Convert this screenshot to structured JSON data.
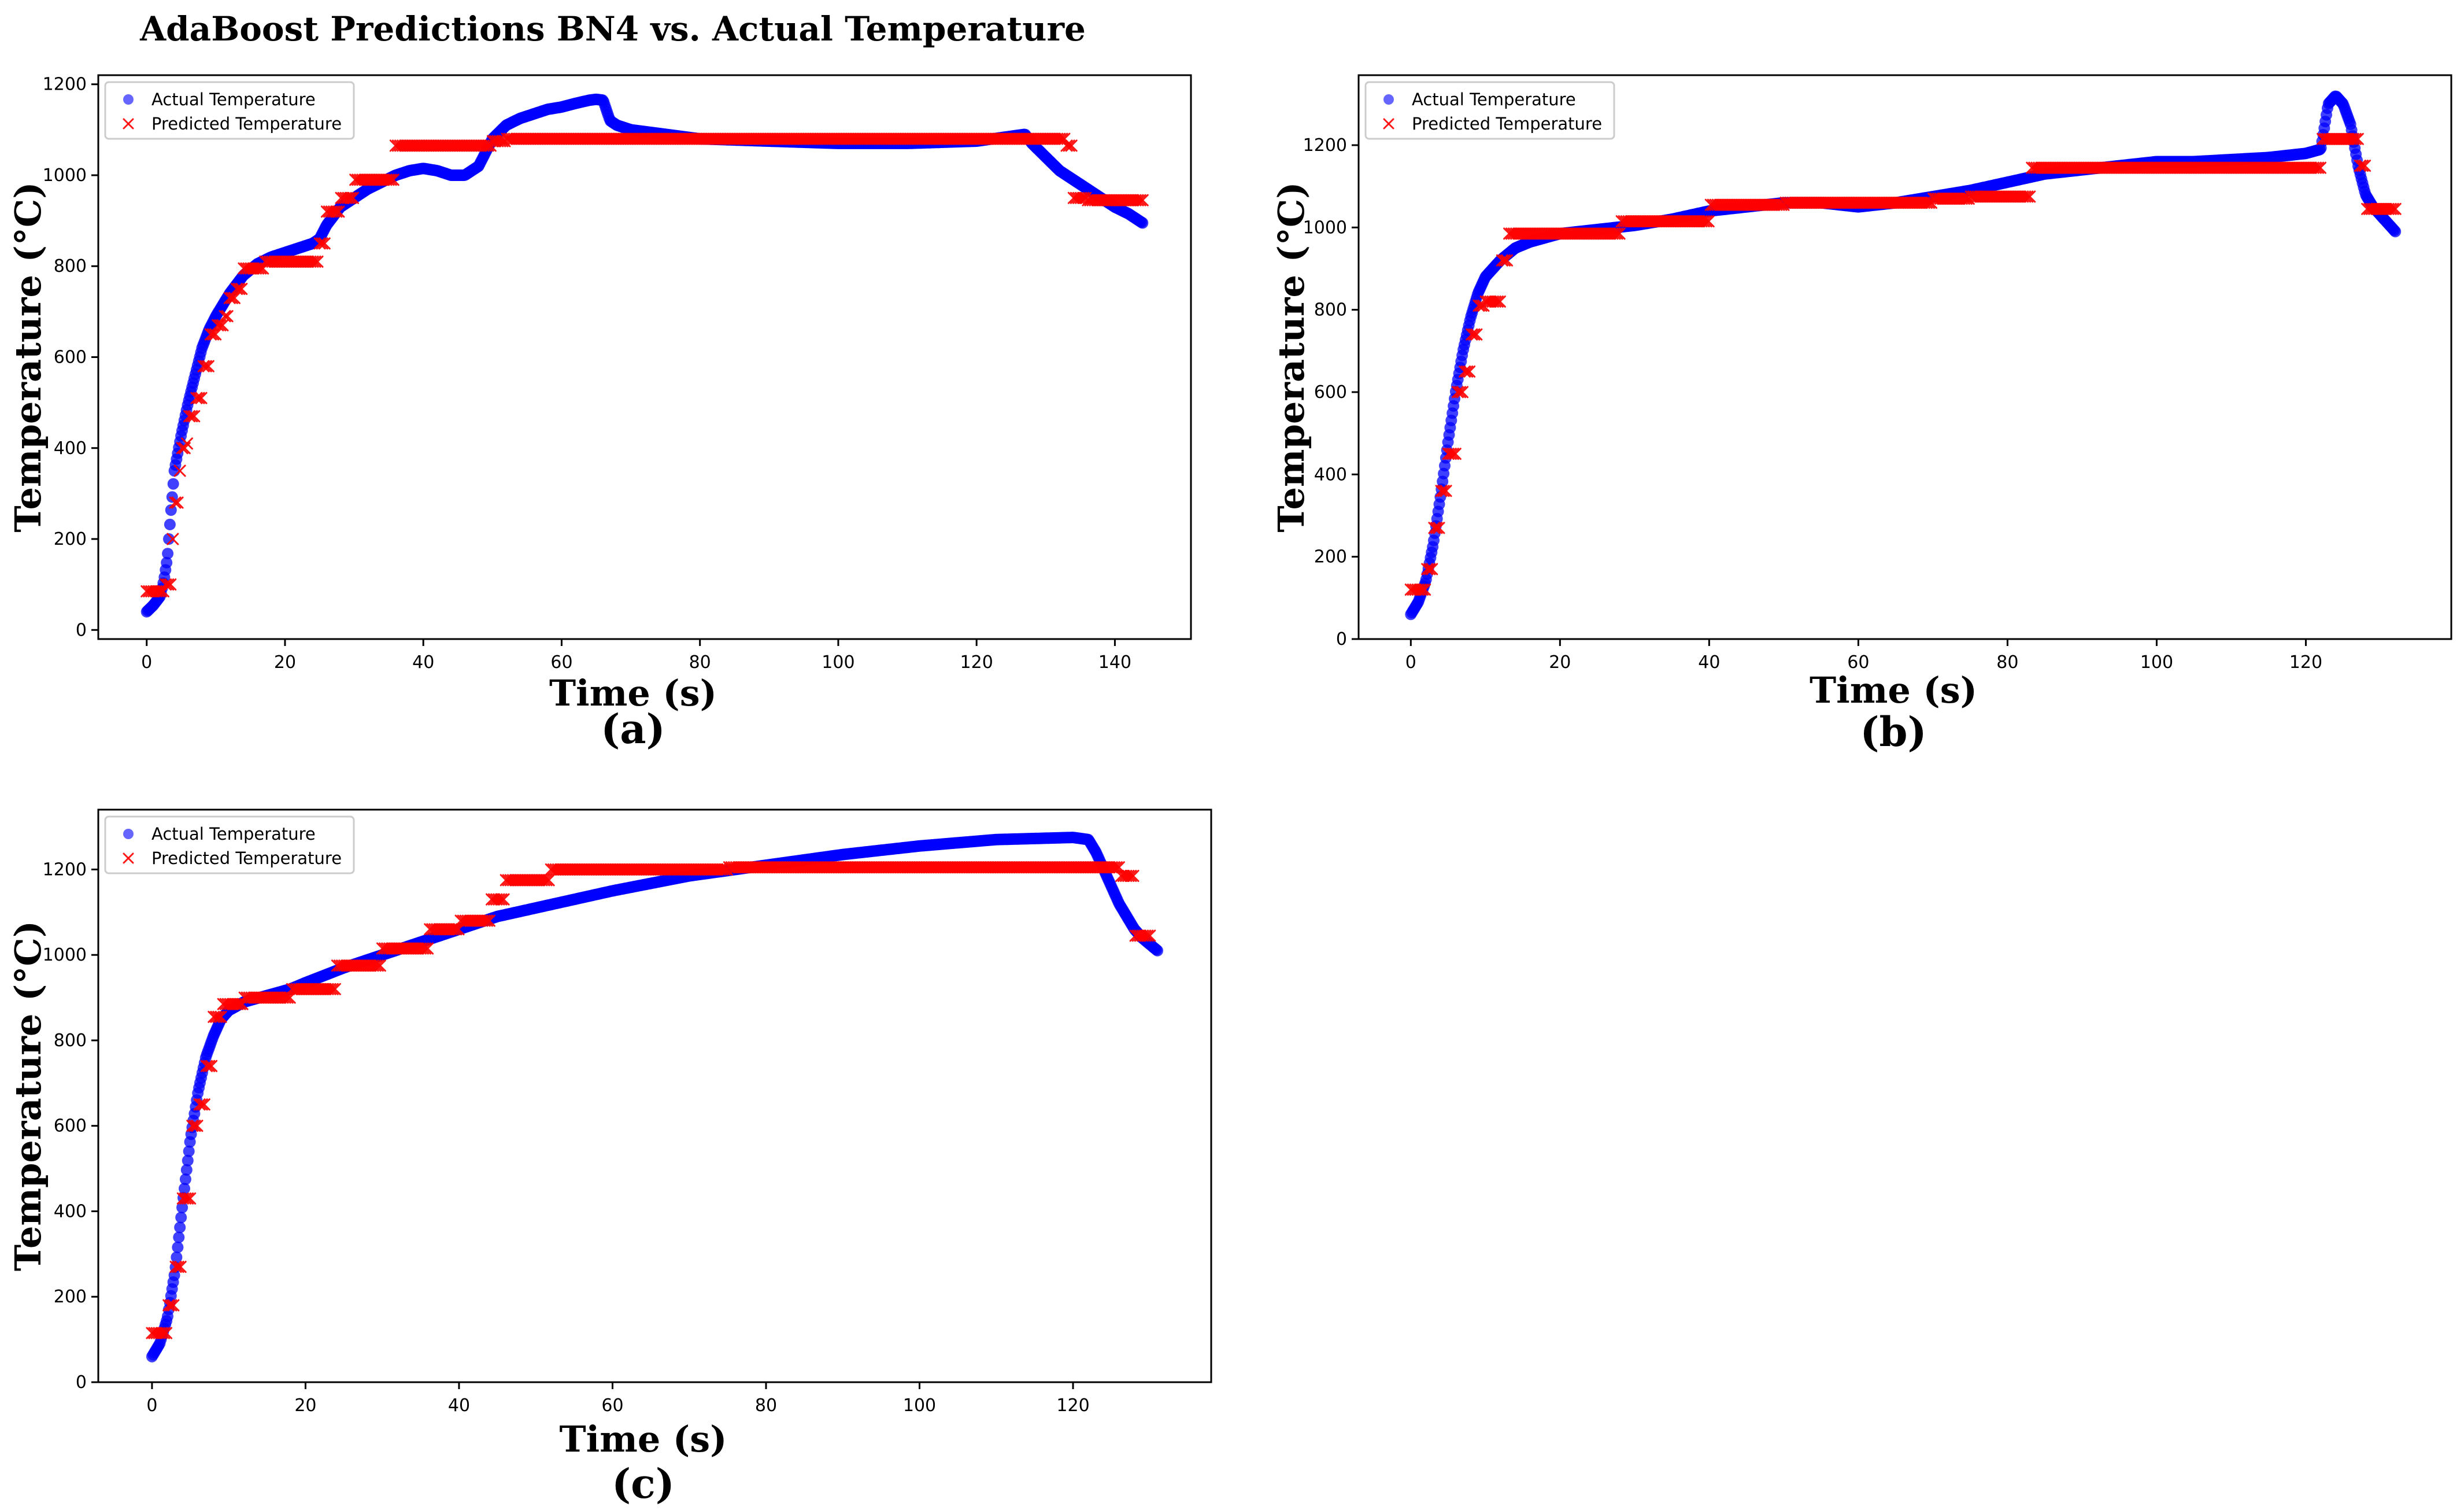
{
  "figure_title": "AdaBoost Predictions BN4 vs. Actual Temperature",
  "colors": {
    "actual": "#0000ff",
    "predicted": "#ff0000"
  },
  "legend": {
    "actual_label": "Actual Temperature",
    "predicted_label": "Predicted Temperature",
    "placement": "top-left"
  },
  "chart_data": [
    {
      "id": "a",
      "panel_label": "(a)",
      "type": "scatter",
      "xlabel": "Time (s)",
      "ylabel": "Temperature (°C)",
      "xlim": [
        -7,
        151
      ],
      "ylim": [
        -20,
        1220
      ],
      "xticks": [
        0,
        20,
        40,
        60,
        80,
        100,
        120,
        140
      ],
      "yticks": [
        0,
        200,
        400,
        600,
        800,
        1000,
        1200
      ],
      "series": [
        {
          "name": "Actual Temperature",
          "marker": "circle",
          "x": [
            0,
            1,
            2,
            2.5,
            3,
            3.5,
            4,
            5,
            6,
            7,
            8,
            9,
            10,
            12,
            14,
            16,
            18,
            20,
            22,
            24,
            25,
            26,
            28,
            30,
            32,
            34,
            36,
            38,
            40,
            42,
            44,
            46,
            48,
            50,
            52,
            54,
            56,
            58,
            60,
            62,
            64,
            65,
            66,
            67,
            68,
            70,
            75,
            80,
            90,
            100,
            110,
            120,
            127,
            128,
            130,
            132,
            134,
            136,
            138,
            140,
            142,
            144
          ],
          "y": [
            40,
            55,
            75,
            110,
            160,
            260,
            350,
            430,
            500,
            560,
            620,
            660,
            690,
            740,
            780,
            805,
            820,
            830,
            840,
            850,
            860,
            890,
            930,
            950,
            970,
            985,
            1000,
            1010,
            1015,
            1010,
            1000,
            1000,
            1020,
            1080,
            1110,
            1125,
            1135,
            1145,
            1150,
            1158,
            1165,
            1167,
            1165,
            1120,
            1110,
            1100,
            1090,
            1080,
            1075,
            1070,
            1070,
            1075,
            1090,
            1070,
            1040,
            1010,
            990,
            970,
            950,
            930,
            915,
            895
          ]
        },
        {
          "name": "Predicted Temperature",
          "marker": "x",
          "x": [
            0,
            1.5,
            2.5,
            3.5,
            4,
            4.5,
            5,
            5.5,
            6,
            7,
            8,
            9,
            10,
            11,
            12,
            13,
            14,
            15,
            16,
            17,
            18,
            19,
            20,
            21,
            22,
            23,
            24,
            25,
            26,
            27,
            28,
            29,
            30,
            31,
            32,
            33,
            34,
            35,
            36,
            38,
            40,
            42,
            44,
            46,
            48,
            50,
            52,
            55,
            60,
            65,
            70,
            75,
            80,
            85,
            90,
            95,
            100,
            105,
            110,
            115,
            120,
            125,
            128,
            131,
            133,
            134,
            136,
            138,
            140,
            142,
            144
          ],
          "y": [
            85,
            85,
            100,
            200,
            280,
            350,
            400,
            410,
            470,
            510,
            580,
            650,
            670,
            690,
            730,
            750,
            795,
            795,
            795,
            810,
            810,
            810,
            810,
            810,
            810,
            810,
            810,
            850,
            920,
            920,
            950,
            950,
            990,
            990,
            990,
            990,
            990,
            990,
            1065,
            1065,
            1065,
            1065,
            1065,
            1065,
            1065,
            1075,
            1080,
            1080,
            1080,
            1080,
            1080,
            1080,
            1080,
            1080,
            1080,
            1080,
            1080,
            1080,
            1080,
            1080,
            1080,
            1080,
            1080,
            1080,
            1065,
            950,
            945,
            945,
            945,
            945,
            945
          ]
        }
      ]
    },
    {
      "id": "b",
      "panel_label": "(b)",
      "type": "scatter",
      "xlabel": "Time (s)",
      "ylabel": "Temperature (°C)",
      "xlim": [
        -7,
        139.5
      ],
      "ylim": [
        0,
        1370
      ],
      "xticks": [
        0,
        20,
        40,
        60,
        80,
        100,
        120
      ],
      "yticks": [
        0,
        200,
        400,
        600,
        800,
        1000,
        1200
      ],
      "series": [
        {
          "name": "Actual Temperature",
          "marker": "circle",
          "x": [
            0,
            1,
            2,
            3,
            4,
            5,
            6,
            7,
            8,
            9,
            10,
            11,
            12,
            14,
            16,
            18,
            20,
            25,
            30,
            35,
            40,
            45,
            50,
            55,
            60,
            65,
            70,
            75,
            80,
            85,
            90,
            95,
            100,
            105,
            110,
            115,
            120,
            122,
            123,
            124,
            125,
            126,
            127,
            128,
            129,
            130,
            131,
            132
          ],
          "y": [
            60,
            90,
            140,
            230,
            350,
            480,
            600,
            700,
            780,
            840,
            880,
            900,
            920,
            950,
            965,
            975,
            985,
            995,
            1005,
            1020,
            1040,
            1050,
            1060,
            1060,
            1050,
            1060,
            1075,
            1090,
            1110,
            1130,
            1140,
            1150,
            1160,
            1160,
            1165,
            1170,
            1180,
            1190,
            1300,
            1320,
            1300,
            1250,
            1150,
            1080,
            1050,
            1030,
            1010,
            990
          ]
        },
        {
          "name": "Predicted Temperature",
          "marker": "x",
          "x": [
            0,
            1,
            2,
            3,
            4,
            5,
            6,
            7,
            8,
            9,
            10,
            11,
            12,
            13,
            15,
            17,
            20,
            23,
            26,
            28,
            30,
            33,
            36,
            40,
            45,
            50,
            55,
            60,
            65,
            70,
            75,
            80,
            83,
            86,
            90,
            95,
            100,
            105,
            110,
            115,
            120,
            122,
            124,
            126,
            127,
            128,
            130,
            132
          ],
          "y": [
            120,
            120,
            170,
            270,
            360,
            450,
            600,
            650,
            740,
            810,
            820,
            820,
            920,
            985,
            985,
            985,
            985,
            985,
            985,
            1015,
            1015,
            1015,
            1015,
            1055,
            1055,
            1060,
            1060,
            1060,
            1060,
            1070,
            1075,
            1075,
            1145,
            1145,
            1145,
            1145,
            1145,
            1145,
            1145,
            1145,
            1145,
            1215,
            1215,
            1215,
            1150,
            1045,
            1045,
            1045
          ]
        }
      ]
    },
    {
      "id": "c",
      "panel_label": "(c)",
      "type": "scatter",
      "xlabel": "Time (s)",
      "ylabel": "Temperature (°C)",
      "xlim": [
        -7,
        138
      ],
      "ylim": [
        0,
        1340
      ],
      "xticks": [
        0,
        20,
        40,
        60,
        80,
        100,
        120
      ],
      "yticks": [
        0,
        200,
        400,
        600,
        800,
        1000,
        1200
      ],
      "series": [
        {
          "name": "Actual Temperature",
          "marker": "circle",
          "x": [
            0,
            1,
            2,
            3,
            4,
            5,
            6,
            7,
            8,
            9,
            10,
            12,
            14,
            16,
            18,
            20,
            25,
            30,
            35,
            40,
            45,
            50,
            60,
            70,
            80,
            90,
            100,
            110,
            120,
            122,
            123,
            124,
            125,
            126,
            127,
            128,
            129,
            130,
            131
          ],
          "y": [
            60,
            90,
            150,
            260,
            420,
            570,
            680,
            760,
            810,
            850,
            870,
            890,
            900,
            910,
            920,
            935,
            970,
            1000,
            1030,
            1060,
            1090,
            1110,
            1150,
            1185,
            1210,
            1235,
            1255,
            1270,
            1275,
            1270,
            1240,
            1200,
            1160,
            1120,
            1090,
            1060,
            1040,
            1025,
            1010
          ]
        },
        {
          "name": "Predicted Temperature",
          "marker": "x",
          "x": [
            0,
            1,
            2,
            3,
            4,
            5,
            6,
            7,
            8,
            9,
            10,
            12,
            14,
            16,
            18,
            20,
            22,
            24,
            26,
            28,
            30,
            32,
            34,
            36,
            38,
            40,
            42,
            44,
            46,
            48,
            50,
            52,
            55,
            60,
            65,
            70,
            75,
            80,
            85,
            90,
            95,
            100,
            105,
            110,
            115,
            120,
            124,
            126,
            128,
            130
          ],
          "y": [
            115,
            115,
            180,
            270,
            430,
            600,
            650,
            740,
            855,
            885,
            885,
            900,
            900,
            900,
            920,
            920,
            920,
            975,
            975,
            975,
            1015,
            1015,
            1015,
            1060,
            1060,
            1080,
            1080,
            1130,
            1175,
            1175,
            1175,
            1200,
            1200,
            1200,
            1200,
            1200,
            1205,
            1205,
            1205,
            1205,
            1205,
            1205,
            1205,
            1205,
            1205,
            1205,
            1205,
            1185,
            1045,
            1045
          ]
        }
      ]
    }
  ]
}
